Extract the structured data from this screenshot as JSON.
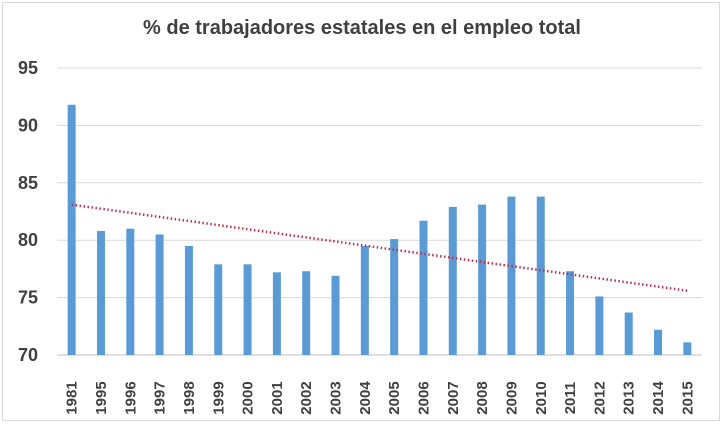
{
  "chart_data": {
    "type": "bar",
    "title": "% de trabajadores estatales en el empleo total",
    "xlabel": "",
    "ylabel": "",
    "categories": [
      "1981",
      "1995",
      "1996",
      "1997",
      "1998",
      "1999",
      "2000",
      "2001",
      "2002",
      "2003",
      "2004",
      "2005",
      "2006",
      "2007",
      "2008",
      "2009",
      "2010",
      "2011",
      "2012",
      "2013",
      "2014",
      "2015"
    ],
    "values": [
      91.8,
      80.8,
      81.0,
      80.5,
      79.5,
      77.9,
      77.9,
      77.2,
      77.3,
      76.9,
      79.5,
      80.1,
      81.7,
      82.9,
      83.1,
      83.8,
      83.8,
      77.3,
      75.1,
      73.7,
      72.2,
      71.1
    ],
    "ylim": [
      70,
      95
    ],
    "yticks": [
      70,
      75,
      80,
      85,
      90,
      95
    ],
    "grid": true,
    "bar_color": "#5b9bd5",
    "trendline": {
      "type": "linear",
      "color": "#c0304a",
      "start_value": 83.1,
      "end_value": 75.6
    }
  }
}
